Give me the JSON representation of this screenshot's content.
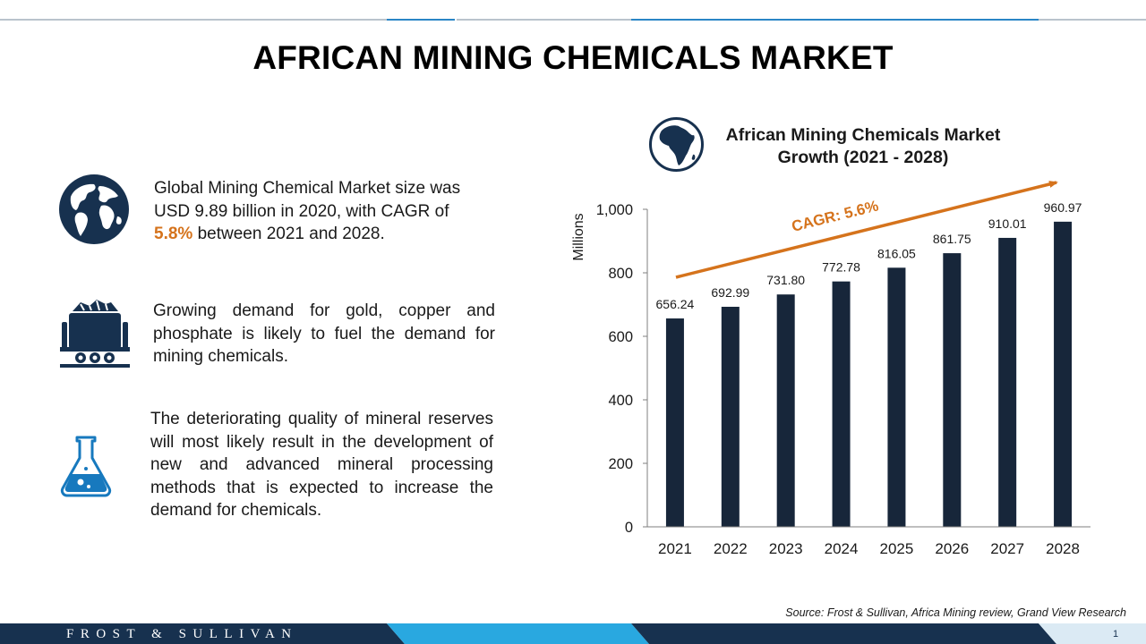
{
  "page": {
    "title": "AFRICAN MINING CHEMICALS MARKET",
    "source": "Source: Frost & Sullivan, Africa Mining review, Grand View Research",
    "brand": "FROST & SULLIVAN",
    "page_number": "1"
  },
  "colors": {
    "navy": "#17314f",
    "accent": "#d5731c",
    "bar": "#17263a",
    "footer_light": "#29a8e0"
  },
  "insights": [
    {
      "icon": "globe-icon",
      "text_before": "Global Mining Chemical Market size was USD 9.89 billion in 2020, with CAGR of ",
      "highlight": "5.8%",
      "text_after": " between 2021 and 2028."
    },
    {
      "icon": "mine-cart-icon",
      "text": "Growing demand for gold, copper and phosphate is likely to fuel the demand for mining chemicals."
    },
    {
      "icon": "flask-icon",
      "text": "The deteriorating quality of mineral reserves will most likely result in the development of new and advanced mineral processing methods that is expected to increase the demand for chemicals."
    }
  ],
  "chart_header": {
    "icon": "africa-globe-icon"
  },
  "chart_data": {
    "type": "bar",
    "title": "African Mining Chemicals Market Growth (2021 - 2028)",
    "ylabel": "Millions",
    "xlabel": "",
    "categories": [
      "2021",
      "2022",
      "2023",
      "2024",
      "2025",
      "2026",
      "2027",
      "2028"
    ],
    "values": [
      656.24,
      692.99,
      731.8,
      772.78,
      816.05,
      861.75,
      910.01,
      960.97
    ],
    "value_labels": [
      "656.24",
      "692.99",
      "731.80",
      "772.78",
      "816.05",
      "861.75",
      "910.01",
      "960.97"
    ],
    "ylim": [
      0,
      1000
    ],
    "yticks": [
      0,
      200,
      400,
      600,
      800,
      1000
    ],
    "ytick_labels": [
      "0",
      "200",
      "400",
      "600",
      "800",
      "1,000"
    ],
    "grid": false,
    "annotation": {
      "text": "CAGR: 5.6%",
      "type": "trend-arrow"
    }
  }
}
